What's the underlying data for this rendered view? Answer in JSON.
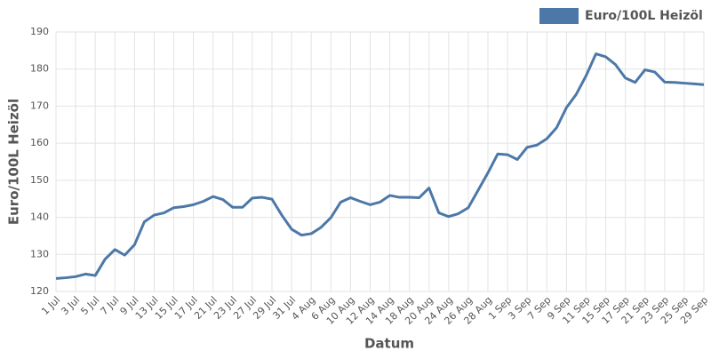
{
  "chart_data": {
    "type": "line",
    "xlabel": "Datum",
    "ylabel": "Euro/100L Heizöl",
    "categories": [
      "1 Jul",
      null,
      "3 Jul",
      null,
      "5 Jul",
      null,
      "7 Jul",
      null,
      "9 Jul",
      null,
      "13 Jul",
      null,
      "15 Jul",
      null,
      "17 Jul",
      null,
      "21 Jul",
      null,
      "23 Jul",
      null,
      "27 Jul",
      null,
      "29 Jul",
      null,
      "31 Jul",
      null,
      "4 Aug",
      null,
      "6 Aug",
      null,
      "10 Aug",
      null,
      "12 Aug",
      null,
      "14 Aug",
      null,
      "18 Aug",
      null,
      "20 Aug",
      null,
      "24 Aug",
      null,
      "26 Aug",
      null,
      "28 Aug",
      null,
      "1 Sep",
      null,
      "3 Sep",
      null,
      "7 Sep",
      null,
      "9 Sep",
      null,
      "11 Sep",
      null,
      "15 Sep",
      null,
      "17 Sep",
      null,
      "21 Sep",
      null,
      "23 Sep",
      null,
      "25 Sep",
      null,
      "29 Sep"
    ],
    "series": [
      {
        "name": "Euro/100L Heizöl",
        "color": "#4c78a8",
        "values": [
          123.5,
          123.7,
          124.0,
          124.7,
          124.3,
          128.7,
          131.3,
          129.8,
          132.6,
          138.8,
          140.6,
          141.2,
          142.6,
          142.9,
          143.4,
          144.3,
          145.6,
          144.8,
          142.7,
          142.7,
          145.2,
          145.4,
          144.9,
          140.6,
          136.8,
          135.2,
          135.6,
          137.3,
          139.9,
          144.1,
          145.3,
          144.3,
          143.4,
          144.1,
          145.9,
          145.4,
          145.4,
          145.3,
          147.9,
          141.2,
          140.2,
          141.0,
          142.6,
          147.3,
          152.0,
          157.1,
          156.9,
          155.6,
          158.9,
          159.5,
          161.2,
          164.2,
          169.6,
          173.2,
          178.2,
          184.1,
          183.3,
          181.2,
          177.6,
          176.4,
          179.8,
          179.2,
          176.5,
          176.4,
          176.2,
          176.0,
          175.8
        ]
      }
    ],
    "ylim": [
      120,
      190
    ],
    "yticks": [
      120,
      130,
      140,
      150,
      160,
      170,
      180,
      190
    ],
    "grid": true,
    "legend": "top-right"
  }
}
